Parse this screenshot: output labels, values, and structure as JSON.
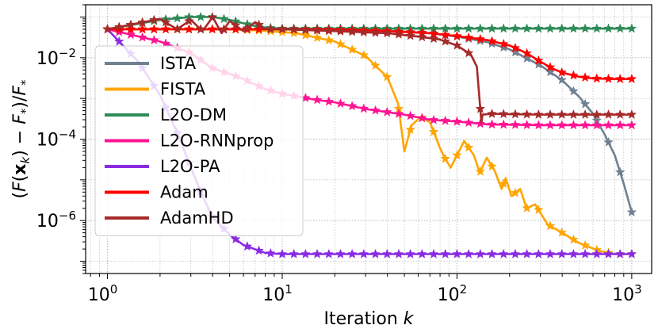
{
  "chart_data": {
    "type": "line",
    "xlabel": "Iteration k",
    "ylabel": "(F(x_k) − F_*)/F_*",
    "xscale": "log",
    "yscale": "log",
    "xlim": [
      0.75,
      1300
    ],
    "ylim": [
      5e-08,
      0.2
    ],
    "grid": true,
    "legend_position": "left",
    "x_ticks": [
      {
        "value": 1,
        "base": "10",
        "exp": "0"
      },
      {
        "value": 10,
        "base": "10",
        "exp": "1"
      },
      {
        "value": 100,
        "base": "10",
        "exp": "2"
      },
      {
        "value": 1000,
        "base": "10",
        "exp": "3"
      }
    ],
    "y_ticks": [
      {
        "value": 0.01,
        "base": "10",
        "exp": "−2"
      },
      {
        "value": 0.0001,
        "base": "10",
        "exp": "−4"
      },
      {
        "value": 1e-06,
        "base": "10",
        "exp": "−6"
      }
    ],
    "series": [
      {
        "name": "ISTA",
        "color": "#708090",
        "points": [
          [
            1,
            0.05
          ],
          [
            2,
            0.05
          ],
          [
            5,
            0.05
          ],
          [
            10,
            0.05
          ],
          [
            20,
            0.049
          ],
          [
            40,
            0.046
          ],
          [
            70,
            0.04
          ],
          [
            100,
            0.033
          ],
          [
            150,
            0.024
          ],
          [
            200,
            0.016
          ],
          [
            300,
            0.0065
          ],
          [
            400,
            0.0028
          ],
          [
            500,
            0.0011
          ],
          [
            600,
            0.00042
          ],
          [
            700,
            0.00013
          ],
          [
            800,
            4e-05
          ],
          [
            900,
            8e-06
          ],
          [
            1000,
            1.6e-06
          ]
        ]
      },
      {
        "name": "FISTA",
        "color": "#FFA500",
        "points": [
          [
            1,
            0.05
          ],
          [
            2,
            0.05
          ],
          [
            5,
            0.05
          ],
          [
            8,
            0.046
          ],
          [
            12,
            0.04
          ],
          [
            20,
            0.025
          ],
          [
            30,
            0.011
          ],
          [
            40,
            0.0033
          ],
          [
            46,
            0.00075
          ],
          [
            50,
            5e-05
          ],
          [
            55,
            0.00022
          ],
          [
            62,
            0.00035
          ],
          [
            70,
            0.00026
          ],
          [
            80,
            6e-05
          ],
          [
            85,
            3.5e-05
          ],
          [
            92,
            2e-05
          ],
          [
            100,
            4e-05
          ],
          [
            110,
            9e-05
          ],
          [
            125,
            4e-05
          ],
          [
            135,
            1.5e-05
          ],
          [
            148,
            3.5e-05
          ],
          [
            165,
            1.6e-05
          ],
          [
            180,
            6e-06
          ],
          [
            190,
            1.1e-05
          ],
          [
            205,
            4e-06
          ],
          [
            230,
            6e-06
          ],
          [
            250,
            2e-06
          ],
          [
            280,
            2.5e-06
          ],
          [
            330,
            8e-07
          ],
          [
            400,
            5e-07
          ],
          [
            500,
            2.8e-07
          ],
          [
            650,
            1.8e-07
          ],
          [
            800,
            1.5e-07
          ],
          [
            1000,
            1.5e-07
          ]
        ]
      },
      {
        "name": "L2O-DM",
        "color": "#2E8B57",
        "points": [
          [
            1,
            0.05
          ],
          [
            2,
            0.085
          ],
          [
            3,
            0.1
          ],
          [
            4,
            0.1
          ],
          [
            5,
            0.085
          ],
          [
            6,
            0.07
          ],
          [
            7,
            0.06
          ],
          [
            8,
            0.055
          ],
          [
            10,
            0.052
          ],
          [
            20,
            0.052
          ],
          [
            50,
            0.052
          ],
          [
            100,
            0.052
          ],
          [
            300,
            0.052
          ],
          [
            1000,
            0.052
          ]
        ]
      },
      {
        "name": "L2O-RNNprop",
        "color": "#FF1493",
        "points": [
          [
            1,
            0.05
          ],
          [
            2,
            0.025
          ],
          [
            3,
            0.013
          ],
          [
            4,
            0.0055
          ],
          [
            5,
            0.004
          ],
          [
            6,
            0.003
          ],
          [
            8,
            0.0017
          ],
          [
            10,
            0.0013
          ],
          [
            15,
            0.00095
          ],
          [
            20,
            0.0008
          ],
          [
            30,
            0.00055
          ],
          [
            50,
            0.0004
          ],
          [
            70,
            0.0003
          ],
          [
            100,
            0.00027
          ],
          [
            150,
            0.00023
          ],
          [
            300,
            0.00022
          ],
          [
            1000,
            0.00022
          ]
        ]
      },
      {
        "name": "L2O-PA",
        "color": "#8A2BE2",
        "points": [
          [
            1,
            0.05
          ],
          [
            1.5,
            0.008
          ],
          [
            2,
            0.0012
          ],
          [
            2.5,
            0.00015
          ],
          [
            3,
            2e-05
          ],
          [
            3.5,
            4e-06
          ],
          [
            4,
            1.2e-06
          ],
          [
            5,
            4.5e-07
          ],
          [
            6,
            2.5e-07
          ],
          [
            8,
            1.6e-07
          ],
          [
            10,
            1.5e-07
          ],
          [
            20,
            1.5e-07
          ],
          [
            100,
            1.5e-07
          ],
          [
            1000,
            1.5e-07
          ]
        ]
      },
      {
        "name": "Adam",
        "color": "#FF0000",
        "points": [
          [
            1,
            0.05
          ],
          [
            5,
            0.05
          ],
          [
            10,
            0.05
          ],
          [
            20,
            0.049
          ],
          [
            40,
            0.045
          ],
          [
            70,
            0.04
          ],
          [
            100,
            0.034
          ],
          [
            150,
            0.027
          ],
          [
            200,
            0.02
          ],
          [
            250,
            0.013
          ],
          [
            300,
            0.008
          ],
          [
            350,
            0.0055
          ],
          [
            400,
            0.0043
          ],
          [
            500,
            0.0034
          ],
          [
            600,
            0.0031
          ],
          [
            800,
            0.003
          ],
          [
            1000,
            0.003
          ]
        ]
      },
      {
        "name": "AdamHD",
        "color": "#A52A2A",
        "points": [
          [
            1,
            0.05
          ],
          [
            2,
            0.09
          ],
          [
            2.5,
            0.05
          ],
          [
            3,
            0.085
          ],
          [
            3.5,
            0.045
          ],
          [
            4,
            0.1
          ],
          [
            4.5,
            0.04
          ],
          [
            5,
            0.08
          ],
          [
            6,
            0.045
          ],
          [
            7,
            0.075
          ],
          [
            8,
            0.05
          ],
          [
            10,
            0.05
          ],
          [
            20,
            0.045
          ],
          [
            40,
            0.04
          ],
          [
            60,
            0.033
          ],
          [
            80,
            0.028
          ],
          [
            100,
            0.02
          ],
          [
            120,
            0.012
          ],
          [
            130,
            0.006
          ],
          [
            135,
            0.0008
          ],
          [
            138,
            0.00025
          ],
          [
            140,
            0.0004
          ],
          [
            160,
            0.00042
          ],
          [
            200,
            0.00041
          ],
          [
            300,
            0.0004
          ],
          [
            500,
            0.0004
          ],
          [
            1000,
            0.0004
          ]
        ]
      }
    ]
  }
}
